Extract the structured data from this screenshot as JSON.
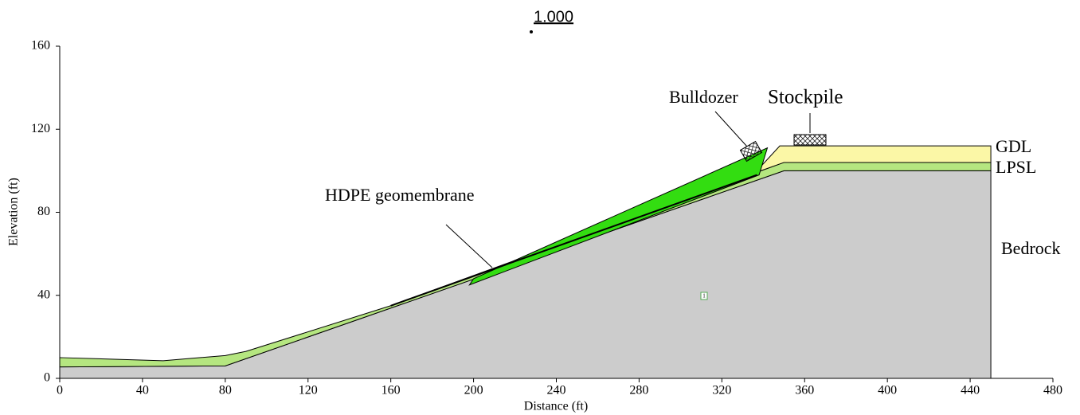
{
  "chart_data": {
    "type": "section",
    "factor_of_safety": "1.000",
    "region_label": "1",
    "x_label": "Distance (ft)",
    "y_label": "Elevation (ft)",
    "xlim": [
      0,
      480
    ],
    "xticks": [
      0,
      40,
      80,
      120,
      160,
      200,
      240,
      280,
      320,
      360,
      400,
      440,
      480
    ],
    "ylim": [
      0,
      160
    ],
    "yticks": [
      0,
      40,
      80,
      120,
      160
    ],
    "grid": false,
    "annotations": [
      "Bulldozer",
      "Stockpile"
    ],
    "series": [
      {
        "name": "Bedrock",
        "color": "#cccccc",
        "x": [
          0,
          80,
          350,
          450,
          450,
          0
        ],
        "y": [
          5.5,
          6,
          100,
          100,
          0,
          0
        ]
      },
      {
        "name": "LPSL",
        "color": "#b5e680",
        "x": [
          0,
          50,
          80,
          90,
          160,
          350,
          450,
          450,
          350,
          80,
          0
        ],
        "y": [
          10,
          8.5,
          11,
          13,
          35,
          104,
          104,
          100,
          100,
          6,
          5.5
        ]
      },
      {
        "name": "GDL",
        "color": "#fbf7a6",
        "x": [
          336,
          348,
          450,
          450,
          350,
          336
        ],
        "y": [
          99,
          112,
          112,
          104,
          104,
          99
        ]
      },
      {
        "color": "#33dd11",
        "x": [
          198,
          200,
          342,
          338,
          198
        ],
        "y": [
          45,
          48,
          111,
          98,
          45
        ]
      },
      {
        "name": "HDPE geomembrane",
        "color": "#000000",
        "line": true,
        "x": [
          160,
          337
        ],
        "y": [
          35,
          98
        ]
      }
    ]
  }
}
